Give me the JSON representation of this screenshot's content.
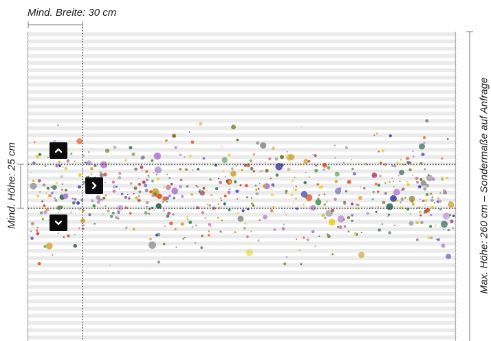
{
  "labels": {
    "min_width": "Mind. Breite: 30 cm",
    "min_height": "Mind. Höhe: 25 cm",
    "max_height": "Max. Höhe: 260 cm – Sondermaße auf Anfrage"
  },
  "controls": {
    "up_icon": "chevron-up-icon",
    "down_icon": "chevron-down-icon",
    "right_icon": "chevron-right-icon"
  },
  "colors": {
    "fabric_stripe": "#e9e9e9",
    "fabric_base": "#ffffff",
    "guide_line": "#333333",
    "button_bg": "#0c0c0c",
    "speckles": [
      "#4a4aa8",
      "#7a7a2a",
      "#3f8a3a",
      "#b27fd0",
      "#d0a020",
      "#e05020",
      "#3a6a5a",
      "#e8d020",
      "#888888",
      "#b05070"
    ]
  }
}
